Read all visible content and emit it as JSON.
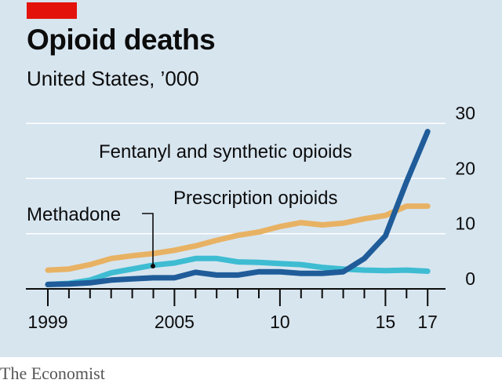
{
  "header": {
    "title": "Opioid deaths",
    "subtitle": "United States, ’000"
  },
  "source": "The Economist",
  "colors": {
    "background": "#d7e5ef",
    "brand_red": "#e3120b",
    "fentanyl": "#1f5c99",
    "prescription": "#e8b264",
    "methadone": "#3ebcd2",
    "gridline": "#ffffff",
    "axis": "#0c0c0c"
  },
  "chart_data": {
    "type": "line",
    "title": "Opioid deaths",
    "subtitle": "United States, ’000",
    "x_tick_labels": [
      {
        "x": 1999,
        "label": "1999"
      },
      {
        "x": 2005,
        "label": "2005"
      },
      {
        "x": 2010,
        "label": "10"
      },
      {
        "x": 2015,
        "label": "15"
      },
      {
        "x": 2017,
        "label": "17"
      }
    ],
    "y_tick_labels": [
      {
        "y": 0,
        "label": "0"
      },
      {
        "y": 10,
        "label": "10"
      },
      {
        "y": 20,
        "label": "20"
      },
      {
        "y": 30,
        "label": "30"
      }
    ],
    "xlim": [
      1998,
      2018
    ],
    "ylim": [
      0,
      30
    ],
    "grid": true,
    "y_axis_side": "right",
    "x": [
      1999,
      2000,
      2001,
      2002,
      2003,
      2004,
      2005,
      2006,
      2007,
      2008,
      2009,
      2010,
      2011,
      2012,
      2013,
      2014,
      2015,
      2016,
      2017
    ],
    "series": [
      {
        "name": "Prescription opioids",
        "color": "#e8b264",
        "label": "Prescription opioids",
        "values": [
          3.4,
          3.6,
          4.4,
          5.5,
          6.0,
          6.4,
          7.0,
          7.8,
          8.8,
          9.7,
          10.3,
          11.3,
          12.0,
          11.6,
          11.9,
          12.7,
          13.3,
          15.0,
          15.0
        ]
      },
      {
        "name": "Fentanyl and synthetic opioids",
        "color": "#1f5c99",
        "label": "Fentanyl and synthetic opioids",
        "values": [
          0.8,
          0.9,
          1.1,
          1.6,
          1.8,
          2.0,
          2.0,
          3.0,
          2.5,
          2.5,
          3.1,
          3.1,
          2.8,
          2.8,
          3.1,
          5.5,
          9.6,
          19.4,
          28.5
        ]
      },
      {
        "name": "Methadone",
        "color": "#3ebcd2",
        "label": "Methadone",
        "values": [
          0.8,
          1.0,
          1.6,
          2.9,
          3.6,
          4.3,
          4.7,
          5.5,
          5.5,
          4.9,
          4.8,
          4.6,
          4.4,
          3.9,
          3.6,
          3.4,
          3.3,
          3.4,
          3.2
        ]
      }
    ]
  }
}
